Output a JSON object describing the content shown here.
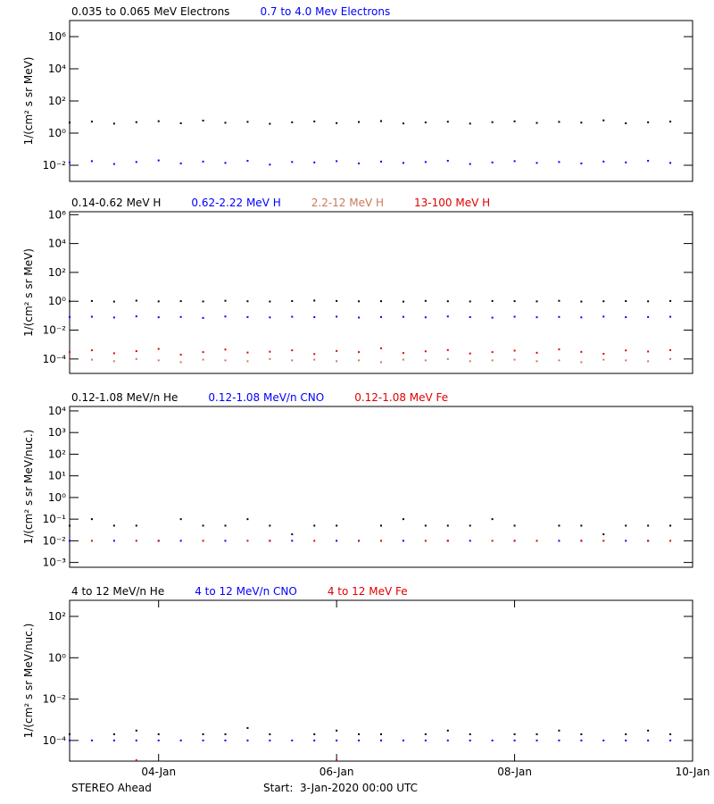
{
  "chart_data": [
    {
      "type": "scatter",
      "ylabel": "1/(cm² s sr MeV)",
      "log_y": true,
      "x": [
        "2020-01-03T00:00",
        "2020-01-03T06:00",
        "2020-01-03T12:00",
        "2020-01-03T18:00",
        "2020-01-04T00:00",
        "2020-01-04T06:00",
        "2020-01-04T12:00",
        "2020-01-04T18:00",
        "2020-01-05T00:00",
        "2020-01-05T06:00",
        "2020-01-05T12:00",
        "2020-01-05T18:00",
        "2020-01-06T00:00",
        "2020-01-06T06:00",
        "2020-01-06T12:00",
        "2020-01-06T18:00",
        "2020-01-07T00:00",
        "2020-01-07T06:00",
        "2020-01-07T12:00",
        "2020-01-07T18:00",
        "2020-01-08T00:00",
        "2020-01-08T06:00",
        "2020-01-08T12:00",
        "2020-01-08T18:00",
        "2020-01-09T00:00",
        "2020-01-09T06:00",
        "2020-01-09T12:00",
        "2020-01-09T18:00"
      ],
      "xlim": [
        "2020-01-03T00:00",
        "2020-01-10T00:00"
      ],
      "ylim": [
        0.001,
        10000000
      ],
      "yticks": [
        {
          "value": 0.01,
          "label": "10⁻²"
        },
        {
          "value": 1,
          "label": "10⁰"
        },
        {
          "value": 100,
          "label": "10²"
        },
        {
          "value": 10000,
          "label": "10⁴"
        },
        {
          "value": 1000000,
          "label": "10⁶"
        }
      ],
      "series": [
        {
          "name": "0.035 to 0.065 MeV Electrons",
          "color": "#000000",
          "values": [
            4.5,
            5.2,
            3.9,
            4.8,
            5.5,
            4.1,
            6.0,
            4.4,
            5.0,
            3.8,
            4.7,
            5.3,
            4.2,
            4.9,
            5.6,
            4.0,
            4.6,
            5.1,
            3.9,
            4.8,
            5.4,
            4.3,
            5.0,
            4.5,
            6.2,
            4.1,
            4.7,
            5.2
          ]
        },
        {
          "name": "0.7 to 4.0 Mev Electrons",
          "color": "#0000ff",
          "values": [
            0.015,
            0.018,
            0.012,
            0.016,
            0.02,
            0.013,
            0.017,
            0.014,
            0.019,
            0.011,
            0.016,
            0.015,
            0.018,
            0.013,
            0.017,
            0.014,
            0.016,
            0.019,
            0.012,
            0.015,
            0.018,
            0.014,
            0.016,
            0.013,
            0.017,
            0.015,
            0.019,
            0.014
          ]
        }
      ]
    },
    {
      "type": "scatter",
      "ylabel": "1/(cm² s sr MeV)",
      "log_y": true,
      "x": [
        "2020-01-03T00:00",
        "2020-01-03T06:00",
        "2020-01-03T12:00",
        "2020-01-03T18:00",
        "2020-01-04T00:00",
        "2020-01-04T06:00",
        "2020-01-04T12:00",
        "2020-01-04T18:00",
        "2020-01-05T00:00",
        "2020-01-05T06:00",
        "2020-01-05T12:00",
        "2020-01-05T18:00",
        "2020-01-06T00:00",
        "2020-01-06T06:00",
        "2020-01-06T12:00",
        "2020-01-06T18:00",
        "2020-01-07T00:00",
        "2020-01-07T06:00",
        "2020-01-07T12:00",
        "2020-01-07T18:00",
        "2020-01-08T00:00",
        "2020-01-08T06:00",
        "2020-01-08T12:00",
        "2020-01-08T18:00",
        "2020-01-09T00:00",
        "2020-01-09T06:00",
        "2020-01-09T12:00",
        "2020-01-09T18:00"
      ],
      "xlim": [
        "2020-01-03T00:00",
        "2020-01-10T00:00"
      ],
      "ylim": [
        1e-05,
        1600000
      ],
      "yticks": [
        {
          "value": 0.0001,
          "label": "10⁻⁴"
        },
        {
          "value": 0.01,
          "label": "10⁻²"
        },
        {
          "value": 1,
          "label": "10⁰"
        },
        {
          "value": 100,
          "label": "10²"
        },
        {
          "value": 10000,
          "label": "10⁴"
        },
        {
          "value": 1000000,
          "label": "10⁶"
        }
      ],
      "series": [
        {
          "name": "0.14-0.62 MeV H",
          "color": "#000000",
          "values": [
            1.0,
            1.05,
            0.95,
            1.1,
            0.98,
            1.02,
            0.97,
            1.08,
            1.0,
            0.96,
            1.03,
            1.12,
            1.05,
            0.99,
            1.01,
            0.94,
            1.06,
            1.0,
            0.97,
            1.04,
            1.02,
            0.98,
            1.07,
            0.95,
            1.0,
            1.03,
            0.99,
            1.05
          ]
        },
        {
          "name": "0.62-2.22 MeV H",
          "color": "#0000ff",
          "values": [
            0.08,
            0.085,
            0.075,
            0.09,
            0.078,
            0.082,
            0.07,
            0.088,
            0.08,
            0.076,
            0.084,
            0.079,
            0.086,
            0.074,
            0.081,
            0.083,
            0.077,
            0.089,
            0.08,
            0.073,
            0.085,
            0.078,
            0.082,
            0.076,
            0.087,
            0.079,
            0.081,
            0.084
          ]
        },
        {
          "name": "2.2-12 MeV H",
          "color": "#c87a5c",
          "values": [
            8e-05,
            9e-05,
            7e-05,
            0.0001,
            8e-05,
            6e-05,
            9e-05,
            8e-05,
            7e-05,
            0.0001,
            8e-05,
            9e-05,
            7e-05,
            8e-05,
            6e-05,
            9e-05,
            8e-05,
            0.0001,
            7e-05,
            8e-05,
            9e-05,
            7e-05,
            8e-05,
            6e-05,
            9e-05,
            8e-05,
            7e-05,
            0.0001
          ]
        },
        {
          "name": "13-100 MeV H",
          "color": "#e00000",
          "values": [
            0.0003,
            0.0004,
            0.00025,
            0.00035,
            0.0005,
            0.0002,
            0.0003,
            0.00045,
            0.00028,
            0.00032,
            0.0004,
            0.00022,
            0.00036,
            0.0003,
            0.00055,
            0.00026,
            0.00034,
            0.00042,
            0.00024,
            0.0003,
            0.00038,
            0.00027,
            0.00046,
            0.00031,
            0.00023,
            0.00039,
            0.00033,
            0.00041
          ]
        }
      ]
    },
    {
      "type": "scatter",
      "ylabel": "1/(cm² s sr MeV/nuc.)",
      "log_y": true,
      "x": [
        "2020-01-03T00:00",
        "2020-01-03T06:00",
        "2020-01-03T12:00",
        "2020-01-03T18:00",
        "2020-01-04T00:00",
        "2020-01-04T06:00",
        "2020-01-04T12:00",
        "2020-01-04T18:00",
        "2020-01-05T00:00",
        "2020-01-05T06:00",
        "2020-01-05T12:00",
        "2020-01-05T18:00",
        "2020-01-06T00:00",
        "2020-01-06T06:00",
        "2020-01-06T12:00",
        "2020-01-06T18:00",
        "2020-01-07T00:00",
        "2020-01-07T06:00",
        "2020-01-07T12:00",
        "2020-01-07T18:00",
        "2020-01-08T00:00",
        "2020-01-08T06:00",
        "2020-01-08T12:00",
        "2020-01-08T18:00",
        "2020-01-09T00:00",
        "2020-01-09T06:00",
        "2020-01-09T12:00",
        "2020-01-09T18:00"
      ],
      "xlim": [
        "2020-01-03T00:00",
        "2020-01-10T00:00"
      ],
      "ylim": [
        0.0006,
        16000
      ],
      "yticks": [
        {
          "value": 0.001,
          "label": "10⁻³"
        },
        {
          "value": 0.01,
          "label": "10⁻²"
        },
        {
          "value": 0.1,
          "label": "10⁻¹"
        },
        {
          "value": 1,
          "label": "10⁰"
        },
        {
          "value": 10,
          "label": "10¹"
        },
        {
          "value": 100,
          "label": "10²"
        },
        {
          "value": 1000,
          "label": "10³"
        },
        {
          "value": 10000,
          "label": "10⁴"
        }
      ],
      "series": [
        {
          "name": "0.12-1.08 MeV/n He",
          "color": "#000000",
          "values": [
            0.05,
            0.1,
            0.05,
            0.05,
            null,
            0.1,
            0.05,
            0.05,
            0.1,
            0.05,
            0.02,
            0.05,
            0.05,
            null,
            0.05,
            0.1,
            0.05,
            0.05,
            0.05,
            0.1,
            0.05,
            null,
            0.05,
            0.05,
            0.02,
            0.05,
            0.05,
            0.05
          ]
        },
        {
          "name": "0.12-1.08 MeV/n CNO",
          "color": "#0000ff",
          "values": [
            0.01,
            null,
            0.01,
            null,
            0.01,
            0.01,
            null,
            0.01,
            null,
            0.01,
            0.01,
            null,
            0.01,
            0.01,
            null,
            0.01,
            null,
            0.01,
            0.01,
            null,
            0.01,
            null,
            0.01,
            0.01,
            null,
            0.01,
            0.01,
            null
          ]
        },
        {
          "name": "0.12-1.08 MeV Fe",
          "color": "#e00000",
          "values": [
            null,
            0.01,
            null,
            0.01,
            0.01,
            null,
            0.01,
            null,
            0.01,
            0.01,
            null,
            0.01,
            null,
            0.01,
            0.01,
            null,
            0.01,
            0.01,
            null,
            0.01,
            0.01,
            0.01,
            null,
            0.01,
            0.01,
            null,
            0.01,
            0.01
          ]
        }
      ]
    },
    {
      "type": "scatter",
      "ylabel": "1/(cm² s sr MeV/nuc.)",
      "log_y": true,
      "x": [
        "2020-01-03T00:00",
        "2020-01-03T06:00",
        "2020-01-03T12:00",
        "2020-01-03T18:00",
        "2020-01-04T00:00",
        "2020-01-04T06:00",
        "2020-01-04T12:00",
        "2020-01-04T18:00",
        "2020-01-05T00:00",
        "2020-01-05T06:00",
        "2020-01-05T12:00",
        "2020-01-05T18:00",
        "2020-01-06T00:00",
        "2020-01-06T06:00",
        "2020-01-06T12:00",
        "2020-01-06T18:00",
        "2020-01-07T00:00",
        "2020-01-07T06:00",
        "2020-01-07T12:00",
        "2020-01-07T18:00",
        "2020-01-08T00:00",
        "2020-01-08T06:00",
        "2020-01-08T12:00",
        "2020-01-08T18:00",
        "2020-01-09T00:00",
        "2020-01-09T06:00",
        "2020-01-09T12:00",
        "2020-01-09T18:00"
      ],
      "xlim": [
        "2020-01-03T00:00",
        "2020-01-10T00:00"
      ],
      "ylim": [
        1e-05,
        600
      ],
      "yticks": [
        {
          "value": 0.0001,
          "label": "10⁻⁴"
        },
        {
          "value": 0.01,
          "label": "10⁻²"
        },
        {
          "value": 1,
          "label": "10⁰"
        },
        {
          "value": 100,
          "label": "10²"
        }
      ],
      "xticks": [
        {
          "value": "2020-01-04T00:00",
          "label": "04-Jan"
        },
        {
          "value": "2020-01-06T00:00",
          "label": "06-Jan"
        },
        {
          "value": "2020-01-08T00:00",
          "label": "08-Jan"
        },
        {
          "value": "2020-01-10T00:00",
          "label": "10-Jan"
        }
      ],
      "series": [
        {
          "name": "4 to 12 MeV/n He",
          "color": "#000000",
          "values": [
            0.0002,
            null,
            0.0002,
            0.0003,
            0.0002,
            null,
            0.0002,
            0.0002,
            0.0004,
            0.0002,
            null,
            0.0002,
            0.0003,
            0.0002,
            0.0002,
            null,
            0.0002,
            0.0003,
            0.0002,
            null,
            0.0002,
            0.0002,
            0.0003,
            0.0002,
            null,
            0.0002,
            0.0003,
            0.0002
          ]
        },
        {
          "name": "4 to 12 MeV/n CNO",
          "color": "#0000ff",
          "values": [
            0.0001,
            0.0001,
            0.0001,
            0.0001,
            0.0001,
            0.0001,
            0.0001,
            0.0001,
            0.0001,
            0.0001,
            0.0001,
            0.0001,
            0.0001,
            0.0001,
            0.0001,
            0.0001,
            0.0001,
            0.0001,
            0.0001,
            0.0001,
            0.0001,
            0.0001,
            0.0001,
            0.0001,
            0.0001,
            0.0001,
            0.0001,
            0.0001
          ]
        },
        {
          "name": "4 to 12 MeV Fe",
          "color": "#e00000",
          "values": [
            null,
            null,
            null,
            1.1e-05,
            null,
            null,
            null,
            null,
            null,
            null,
            null,
            null,
            1.1e-05,
            null,
            null,
            null,
            null,
            null,
            null,
            null,
            null,
            null,
            null,
            null,
            null,
            null,
            null,
            null
          ]
        }
      ]
    }
  ],
  "footer": {
    "left": "STEREO Ahead",
    "right": "Start:  3-Jan-2020 00:00 UTC"
  }
}
